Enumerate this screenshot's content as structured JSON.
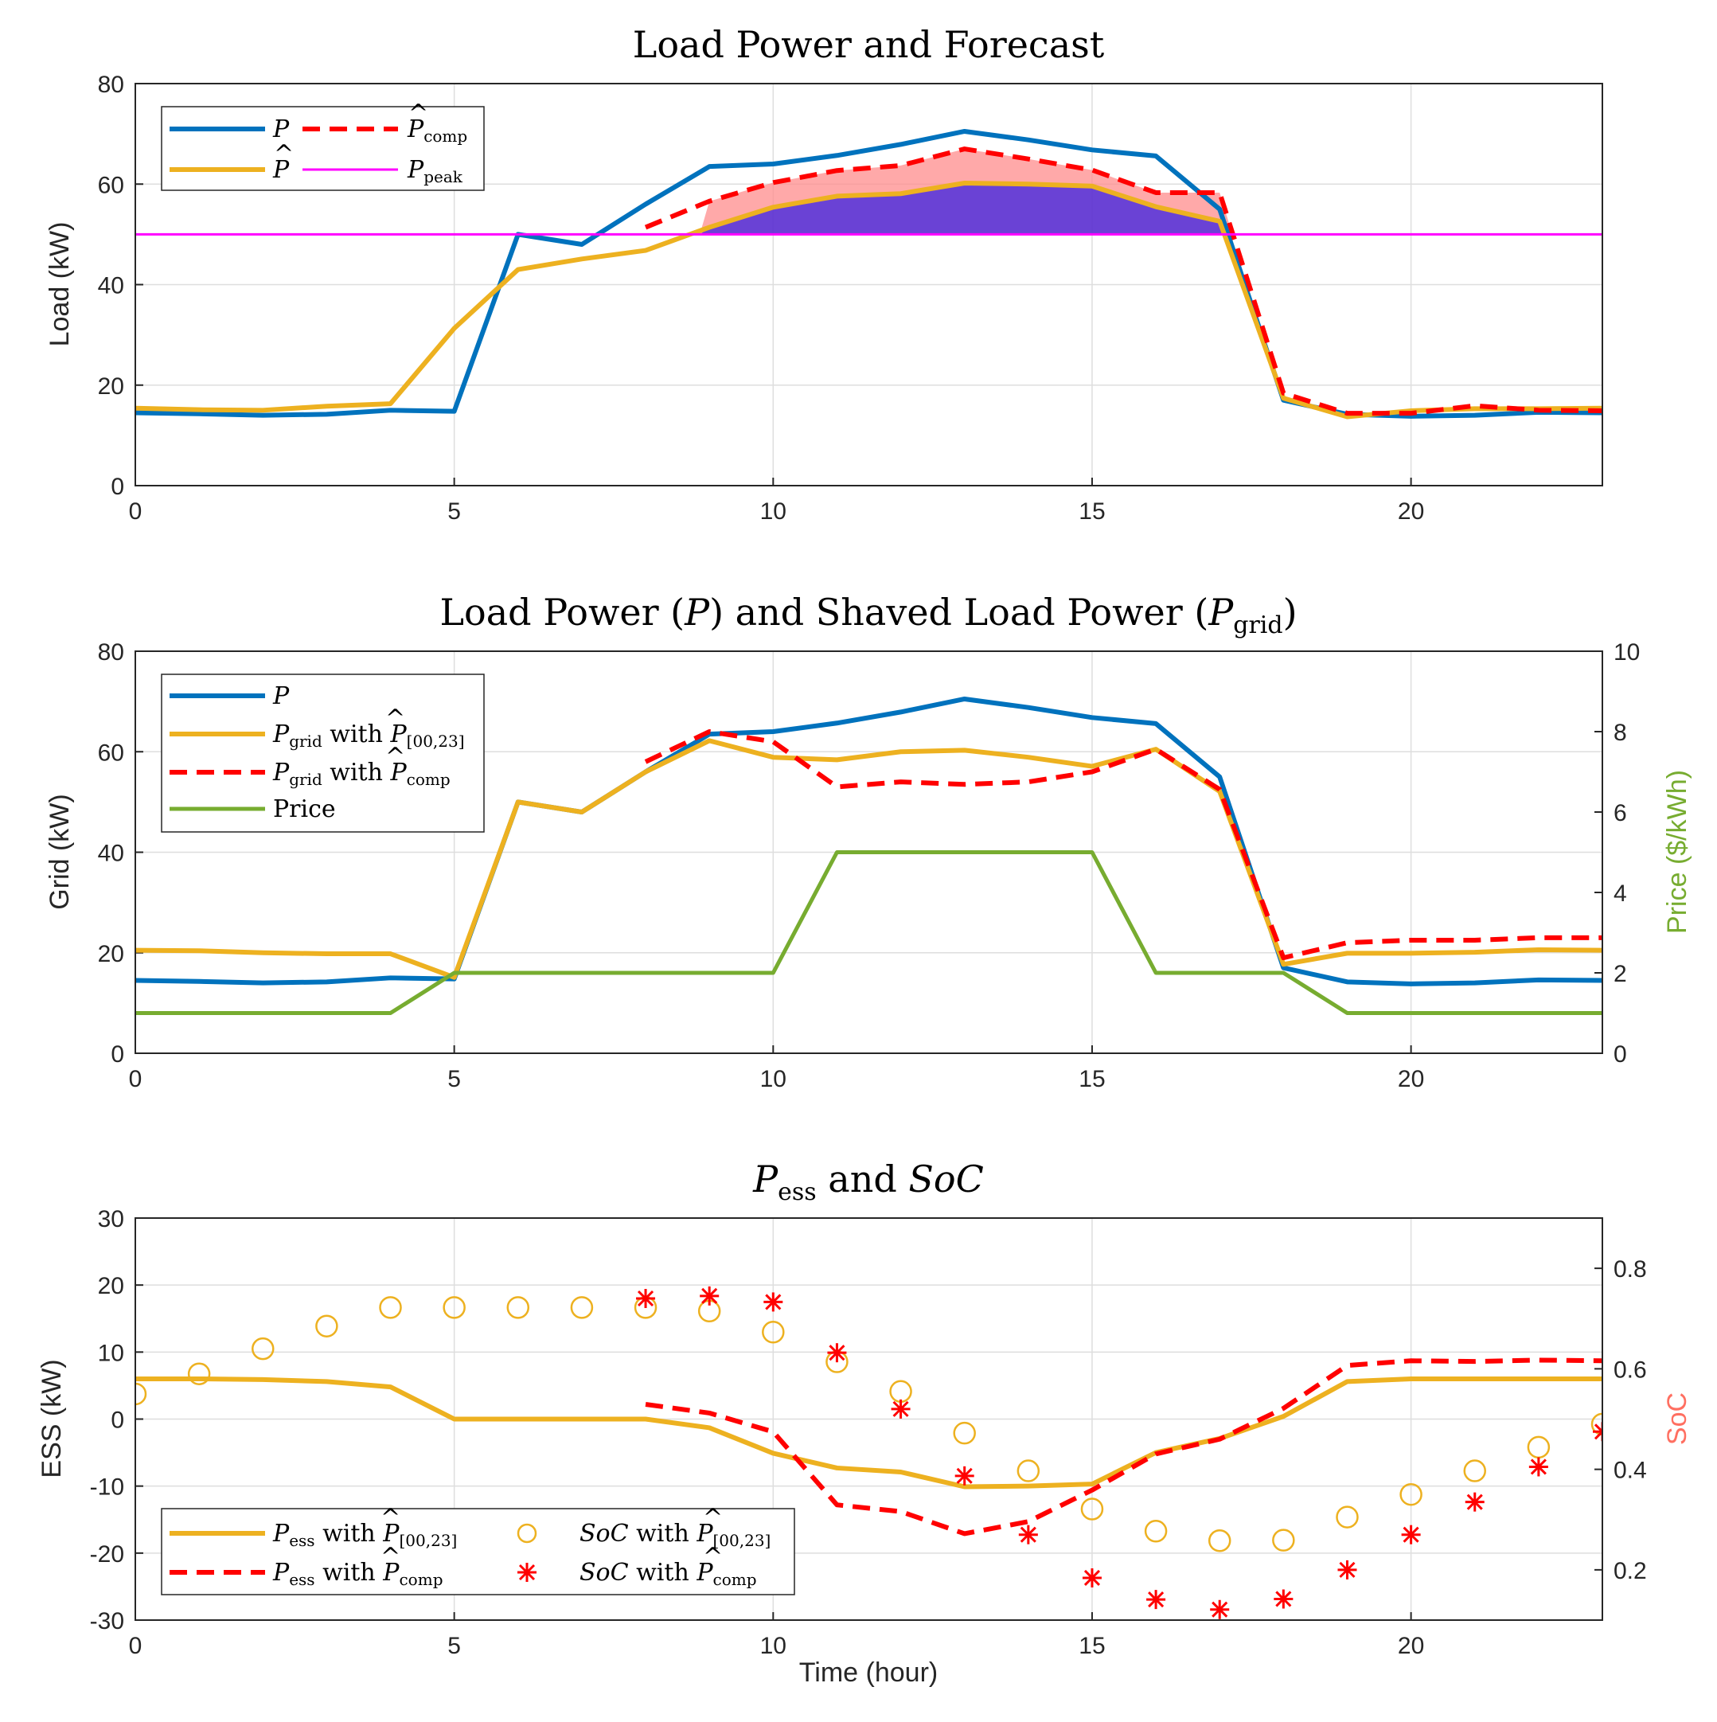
{
  "chart_data": [
    {
      "type": "line",
      "title": "Load Power and Forecast",
      "xlabel": "",
      "ylabel": "Load (kW)",
      "xlim": [
        0,
        23
      ],
      "ylim": [
        0,
        80
      ],
      "xticks": [
        "0",
        "5",
        "10",
        "15",
        "20"
      ],
      "yticks": [
        "0",
        "20",
        "40",
        "60",
        "80"
      ],
      "grid": true,
      "legend_position": "top-left",
      "legend": [
        "P",
        "P̂comp",
        "P̂",
        "Ppeak"
      ],
      "peak_value": 50,
      "series": [
        {
          "name": "P",
          "color": "#0072BD",
          "style": "solid",
          "x": [
            0,
            1,
            2,
            3,
            4,
            5,
            6,
            7,
            8,
            9,
            10,
            11,
            12,
            13,
            14,
            15,
            16,
            17,
            18,
            19,
            20,
            21,
            22,
            23
          ],
          "values": [
            14.5,
            14.3,
            14.0,
            14.2,
            15.0,
            14.8,
            50.0,
            48.0,
            56.0,
            63.5,
            64.0,
            65.7,
            67.9,
            70.5,
            68.8,
            66.8,
            65.6,
            55.0,
            17.0,
            14.2,
            13.8,
            14.0,
            14.6,
            14.5
          ]
        },
        {
          "name": "P̂",
          "color": "#EDB120",
          "style": "solid",
          "x": [
            0,
            1,
            2,
            3,
            4,
            5,
            6,
            7,
            8,
            9,
            10,
            11,
            12,
            13,
            14,
            15,
            16,
            17,
            18,
            19,
            20,
            21,
            22,
            23
          ],
          "values": [
            15.4,
            15.1,
            15.0,
            15.8,
            16.3,
            31.3,
            43.0,
            45.1,
            46.8,
            51.4,
            55.4,
            57.6,
            58.1,
            60.2,
            60.0,
            59.6,
            55.5,
            52.6,
            17.4,
            13.7,
            14.9,
            15.3,
            15.3,
            15.4
          ]
        },
        {
          "name": "P̂comp",
          "color": "#FF0000",
          "style": "dashed",
          "x": [
            8,
            9,
            10,
            11,
            12,
            13,
            14,
            15,
            16,
            17,
            18,
            19,
            20,
            21,
            22,
            23
          ],
          "values": [
            51.4,
            56.6,
            60.3,
            62.7,
            63.7,
            67.0,
            65.0,
            62.8,
            58.3,
            58.3,
            18.4,
            14.4,
            14.4,
            15.9,
            15.0,
            14.9
          ]
        },
        {
          "name": "Ppeak",
          "color": "#FF00FF",
          "style": "solid",
          "x": [
            0,
            23
          ],
          "values": [
            50,
            50
          ]
        }
      ]
    },
    {
      "type": "line",
      "title": "Load Power (P) and Shaved Load Power (Pgrid)",
      "xlabel": "",
      "ylabel": "Grid (kW)",
      "y2label": "Price ($/kWh)",
      "xlim": [
        0,
        23
      ],
      "ylim": [
        0,
        80
      ],
      "y2lim": [
        0,
        10
      ],
      "xticks": [
        "0",
        "5",
        "10",
        "15",
        "20"
      ],
      "yticks": [
        "0",
        "20",
        "40",
        "60",
        "80"
      ],
      "y2ticks": [
        "0",
        "2",
        "4",
        "6",
        "8",
        "10"
      ],
      "grid": true,
      "legend_position": "top-left",
      "legend": [
        "P",
        "Pgrid with P̂[00,23]",
        "Pgrid with P̂comp",
        "Price"
      ],
      "series": [
        {
          "name": "P",
          "color": "#0072BD",
          "style": "solid",
          "x": [
            0,
            1,
            2,
            3,
            4,
            5,
            6,
            7,
            8,
            9,
            10,
            11,
            12,
            13,
            14,
            15,
            16,
            17,
            18,
            19,
            20,
            21,
            22,
            23
          ],
          "values": [
            14.5,
            14.3,
            14.0,
            14.2,
            15.0,
            14.8,
            50.0,
            48.0,
            56.0,
            63.5,
            64.0,
            65.7,
            67.9,
            70.5,
            68.8,
            66.8,
            65.6,
            55.0,
            17.0,
            14.2,
            13.8,
            14.0,
            14.6,
            14.5
          ]
        },
        {
          "name": "Pgrid with P̂[00,23]",
          "color": "#EDB120",
          "style": "solid",
          "x": [
            0,
            1,
            2,
            3,
            4,
            5,
            6,
            7,
            8,
            9,
            10,
            11,
            12,
            13,
            14,
            15,
            16,
            17,
            18,
            19,
            20,
            21,
            22,
            23
          ],
          "values": [
            20.5,
            20.4,
            20.0,
            19.8,
            19.8,
            15.1,
            50.0,
            48.0,
            56.0,
            62.2,
            58.9,
            58.4,
            60.0,
            60.3,
            58.9,
            57.1,
            60.5,
            52.1,
            17.7,
            19.9,
            19.9,
            20.1,
            20.6,
            20.5
          ]
        },
        {
          "name": "Pgrid with P̂comp",
          "color": "#FF0000",
          "style": "dashed",
          "x": [
            8,
            9,
            10,
            11,
            12,
            13,
            14,
            15,
            16,
            17,
            18,
            19,
            20,
            21,
            22,
            23
          ],
          "values": [
            58.0,
            64.0,
            62.0,
            53.0,
            54.0,
            53.5,
            54.0,
            56.0,
            60.5,
            52.5,
            19.0,
            22.0,
            22.5,
            22.5,
            23.0,
            23.0
          ]
        },
        {
          "name": "Price",
          "color": "#77AC30",
          "axis": "right",
          "style": "solid",
          "x": [
            0,
            4,
            5,
            10,
            11,
            15,
            16,
            18,
            19,
            23
          ],
          "values": [
            1,
            1,
            2,
            2,
            5,
            5,
            2,
            2,
            1,
            1
          ]
        }
      ]
    },
    {
      "type": "line",
      "title": "Pess and SoC",
      "xlabel": "Time (hour)",
      "ylabel": "ESS (kW)",
      "y2label": "SoC",
      "xlim": [
        0,
        23
      ],
      "ylim": [
        -30,
        30
      ],
      "y2lim": [
        0.1,
        0.9
      ],
      "xticks": [
        "0",
        "5",
        "10",
        "15",
        "20"
      ],
      "yticks": [
        "-30",
        "-20",
        "-10",
        "0",
        "10",
        "20",
        "30"
      ],
      "y2ticks": [
        "0.2",
        "0.4",
        "0.6",
        "0.8"
      ],
      "grid": true,
      "legend_position": "bottom-left",
      "legend": [
        "Pess with P̂[00,23]",
        "Pess with P̂comp",
        "SoC with P̂[00,23]",
        "SoC with P̂comp"
      ],
      "series": [
        {
          "name": "Pess with P̂[00,23]",
          "color": "#EDB120",
          "style": "solid",
          "x": [
            0,
            1,
            2,
            3,
            4,
            5,
            6,
            7,
            8,
            9,
            10,
            11,
            12,
            13,
            14,
            15,
            16,
            17,
            18,
            19,
            20,
            21,
            22,
            23
          ],
          "values": [
            6.0,
            6.0,
            5.9,
            5.6,
            4.8,
            0.0,
            0.0,
            0.0,
            0.0,
            -1.3,
            -5.1,
            -7.3,
            -7.9,
            -10.1,
            -10.0,
            -9.7,
            -5.0,
            -2.9,
            0.4,
            5.6,
            6.0,
            6.0,
            6.0,
            6.0
          ]
        },
        {
          "name": "Pess with P̂comp",
          "color": "#FF0000",
          "style": "dashed",
          "x": [
            8,
            9,
            10,
            11,
            12,
            13,
            14,
            15,
            16,
            17,
            18,
            19,
            20,
            21,
            22,
            23
          ],
          "values": [
            2.2,
            0.9,
            -1.9,
            -12.8,
            -13.8,
            -17.1,
            -15.3,
            -10.6,
            -5.2,
            -3.0,
            1.6,
            8.0,
            8.7,
            8.6,
            8.8,
            8.7
          ]
        },
        {
          "name": "SoC with P̂[00,23]",
          "color": "#EDB120",
          "axis": "right",
          "style": "circle-markers",
          "x": [
            0,
            1,
            2,
            3,
            4,
            5,
            6,
            7,
            8,
            9,
            10,
            11,
            12,
            13,
            14,
            15,
            16,
            17,
            18,
            19,
            20,
            21,
            22,
            23
          ],
          "values": [
            0.55,
            0.59,
            0.64,
            0.685,
            0.722,
            0.722,
            0.722,
            0.722,
            0.722,
            0.715,
            0.673,
            0.614,
            0.555,
            0.472,
            0.397,
            0.321,
            0.277,
            0.258,
            0.259,
            0.305,
            0.35,
            0.397,
            0.444,
            0.49
          ]
        },
        {
          "name": "SoC with P̂comp",
          "color": "#FF0000",
          "axis": "right",
          "style": "star-markers",
          "x": [
            8,
            9,
            10,
            11,
            12,
            13,
            14,
            15,
            16,
            17,
            18,
            19,
            20,
            21,
            22,
            23
          ],
          "values": [
            0.74,
            0.745,
            0.733,
            0.632,
            0.52,
            0.387,
            0.27,
            0.184,
            0.141,
            0.121,
            0.142,
            0.2,
            0.27,
            0.335,
            0.405,
            0.475
          ]
        }
      ]
    }
  ]
}
